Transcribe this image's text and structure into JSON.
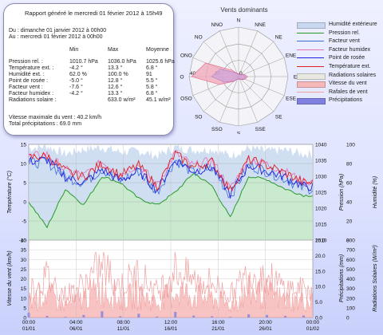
{
  "report": {
    "title": "Rapport généré le mercredi 01 février 2012 à 15h49",
    "from": "Du : dimanche 01 janvier 2012 à 00h00",
    "to": "Au : mercredi 01 février 2012 à 00h00",
    "col_min": "Min",
    "col_max": "Max",
    "col_avg": "Moyenne",
    "rows": [
      {
        "label": "Pression rel. :",
        "min": "1010.7 hPa",
        "max": "1036.0 hPa",
        "avg": "1025.6 hPa"
      },
      {
        "label": "Température ext. :",
        "min": "-4.2 °",
        "max": "13.3 °",
        "avg": "6.8 °"
      },
      {
        "label": "Humidité ext. :",
        "min": "62.0 %",
        "max": "100.0 %",
        "avg": "91"
      },
      {
        "label": "Point de rosée :",
        "min": "-5.0 °",
        "max": "12.8 °",
        "avg": "5.5 °"
      },
      {
        "label": "Facteur vent :",
        "min": "-7.6 °",
        "max": "12.6 °",
        "avg": "5.8 °"
      },
      {
        "label": "Facteur humidex :",
        "min": "-4.2 °",
        "max": "13.3 °",
        "avg": "6.8 °"
      },
      {
        "label": "Radiations solaire :",
        "min": "",
        "max": "633.0 w/m²",
        "avg": "45.1 w/m²"
      }
    ],
    "wind_max": "Vitesse maximale du vent : 40.2 km/h",
    "precip_total": "Total précipitations : 69.0 mm"
  },
  "rose": {
    "title": "Vents dominants",
    "directions": [
      "N",
      "NNE",
      "NE",
      "ENE",
      "E",
      "ESE",
      "SE",
      "SSE",
      "S",
      "SSO",
      "SO",
      "OSO",
      "O",
      "ONO",
      "NO",
      "NNO"
    ],
    "ring_labels": [
      "40",
      "20",
      "0"
    ],
    "frequency": [
      0.06,
      0.05,
      0.07,
      0.12,
      0.18,
      0.14,
      0.09,
      0.06,
      0.05,
      0.06,
      0.14,
      0.42,
      0.95,
      0.72,
      0.18,
      0.07
    ],
    "speed": [
      0.05,
      0.04,
      0.06,
      0.1,
      0.14,
      0.12,
      0.08,
      0.05,
      0.04,
      0.05,
      0.12,
      0.3,
      0.55,
      0.4,
      0.12,
      0.06
    ]
  },
  "legend": [
    {
      "label": "Humidité extérieure",
      "kind": "area",
      "color": "#c8d8f0"
    },
    {
      "label": "Pression rel.",
      "kind": "line",
      "color": "#2a9a2a"
    },
    {
      "label": "Facteur vent",
      "kind": "line",
      "color": "#3a6fd8"
    },
    {
      "label": "Facteur humidex",
      "kind": "line",
      "color": "#e070c0"
    },
    {
      "label": "Point de rosée",
      "kind": "line",
      "color": "#2020e0"
    },
    {
      "label": "Température ext.",
      "kind": "line",
      "color": "#e02020"
    },
    {
      "label": "Radiations solaires",
      "kind": "area",
      "color": "#e8e8e0"
    },
    {
      "label": "Vitesse du vent",
      "kind": "area",
      "color": "#f6b8b8"
    },
    {
      "label": "Rafales de vent",
      "kind": "line",
      "color": "#f0a0a0"
    },
    {
      "label": "Précipitations",
      "kind": "area",
      "color": "#8080e0"
    }
  ],
  "chart_data": [
    {
      "type": "line",
      "ylabel": "Température (°C)",
      "ylabel_right1": "Pression (hPa)",
      "ylabel_right2": "Humidité (%)",
      "ylim": [
        -10,
        15
      ],
      "ylim_right1": [
        1010,
        1040
      ],
      "ylim_right2": [
        0,
        100
      ],
      "yticks": [
        "15",
        "10",
        "5",
        "0",
        "-5",
        "-10"
      ],
      "yticks_right1": [
        "1040",
        "1035",
        "1030",
        "1025",
        "1020",
        "1015",
        "1010"
      ],
      "yticks_right2": [
        "100",
        "80",
        "60",
        "40",
        "20",
        "0"
      ],
      "x": [
        1,
        3,
        5,
        7,
        9,
        11,
        13,
        15,
        17,
        19,
        21,
        23,
        25,
        27,
        29,
        31
      ],
      "series": [
        {
          "name": "Température ext.",
          "values": [
            11.5,
            12.0,
            8.0,
            6.5,
            10.0,
            7.0,
            9.5,
            4.0,
            12.5,
            9.0,
            10.5,
            3.0,
            11.0,
            9.5,
            7.5,
            5.0
          ]
        },
        {
          "name": "Point de rosée",
          "values": [
            10.5,
            11.0,
            6.5,
            5.0,
            8.5,
            5.5,
            8.0,
            3.0,
            11.0,
            8.0,
            9.0,
            2.0,
            9.5,
            8.0,
            6.5,
            4.0
          ]
        },
        {
          "name": "Pression rel.",
          "values": [
            1022,
            1014,
            1026,
            1021,
            1030,
            1028,
            1023,
            1021,
            1025,
            1031,
            1027,
            1017,
            1030,
            1029,
            1026,
            1024
          ]
        },
        {
          "name": "Humidité extérieure",
          "values": [
            96,
            98,
            90,
            95,
            97,
            92,
            93,
            88,
            97,
            94,
            95,
            88,
            96,
            93,
            94,
            90
          ]
        }
      ]
    },
    {
      "type": "area",
      "ylabel": "Vitesse du vent (km/h)",
      "ylabel_right1": "Précipitations (mm)",
      "ylabel_right2": "Radiations Solaires (W/m²)",
      "ylim": [
        0,
        40
      ],
      "ylim_right1": [
        0,
        25
      ],
      "ylim_right2": [
        0,
        800
      ],
      "yticks": [
        "40",
        "35",
        "30",
        "25",
        "20",
        "15",
        "10",
        "5",
        "0"
      ],
      "yticks_right1": [
        "25.0",
        "20.0",
        "15.0",
        "10.0",
        "5.0",
        "0.0"
      ],
      "yticks_right2": [
        "800",
        "700",
        "600",
        "500",
        "400",
        "300",
        "200",
        "100",
        "0"
      ],
      "x": [
        1,
        3,
        5,
        7,
        9,
        11,
        13,
        15,
        17,
        19,
        21,
        23,
        25,
        27,
        29,
        31
      ],
      "series": [
        {
          "name": "Vitesse du vent",
          "values": [
            8,
            12,
            6,
            10,
            15,
            9,
            12,
            7,
            14,
            11,
            10,
            6,
            13,
            12,
            9,
            8
          ]
        },
        {
          "name": "Rafales de vent",
          "values": [
            15,
            22,
            12,
            18,
            28,
            17,
            24,
            14,
            26,
            20,
            19,
            12,
            24,
            22,
            16,
            15
          ]
        },
        {
          "name": "Précipitations",
          "values": [
            1.5,
            0.5,
            0.2,
            0.8,
            2.0,
            0.4,
            1.2,
            0.3,
            1.8,
            0.6,
            0.4,
            0.2,
            1.0,
            0.8,
            0.5,
            0.6
          ]
        }
      ]
    }
  ],
  "x_ticks": [
    {
      "time": "00:00",
      "date": "01/01"
    },
    {
      "time": "04:00",
      "date": "06/01"
    },
    {
      "time": "08:00",
      "date": "11/01"
    },
    {
      "time": "12:00",
      "date": "16/01"
    },
    {
      "time": "16:00",
      "date": "21/01"
    },
    {
      "time": "20:00",
      "date": "26/01"
    },
    {
      "time": "00:00",
      "date": "01/02"
    }
  ]
}
